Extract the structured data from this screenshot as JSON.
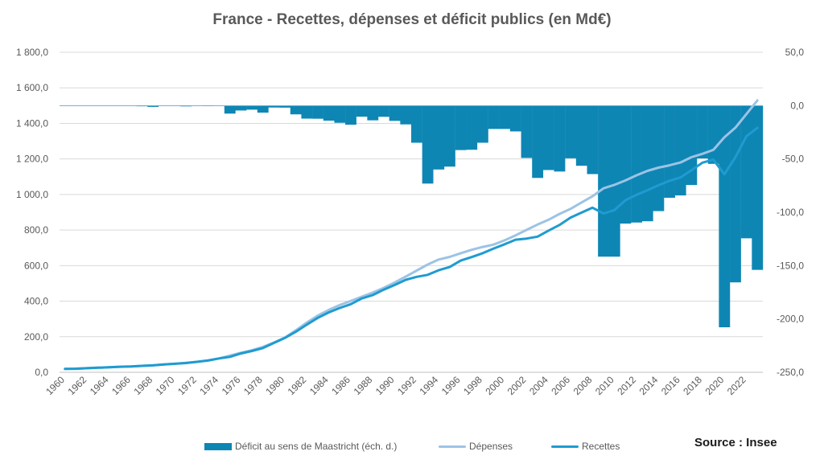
{
  "chart_data": {
    "type": "bar",
    "title": "France - Recettes, dépenses et déficit  publics (en Md€)",
    "source": "Source : Insee",
    "x": [
      1960,
      1961,
      1962,
      1963,
      1964,
      1965,
      1966,
      1967,
      1968,
      1969,
      1970,
      1971,
      1972,
      1973,
      1974,
      1975,
      1976,
      1977,
      1978,
      1979,
      1980,
      1981,
      1982,
      1983,
      1984,
      1985,
      1986,
      1987,
      1988,
      1989,
      1990,
      1991,
      1992,
      1993,
      1994,
      1995,
      1996,
      1997,
      1998,
      1999,
      2000,
      2001,
      2002,
      2003,
      2004,
      2005,
      2006,
      2007,
      2008,
      2009,
      2010,
      2011,
      2012,
      2013,
      2014,
      2015,
      2016,
      2017,
      2018,
      2019,
      2020,
      2021,
      2022,
      2023
    ],
    "x_tick_labels": [
      "1960",
      "1962",
      "1964",
      "1966",
      "1968",
      "1970",
      "1972",
      "1974",
      "1976",
      "1978",
      "1980",
      "1982",
      "1984",
      "1986",
      "1988",
      "1990",
      "1992",
      "1994",
      "1996",
      "1998",
      "2000",
      "2002",
      "2004",
      "2006",
      "2008",
      "2010",
      "2012",
      "2014",
      "2016",
      "2018",
      "2020",
      "2022"
    ],
    "y_left": {
      "min": 0,
      "max": 1800,
      "ticks": [
        "0,0",
        "200,0",
        "400,0",
        "600,0",
        "800,0",
        "1 000,0",
        "1 200,0",
        "1 400,0",
        "1 600,0",
        "1 800,0"
      ]
    },
    "y_right": {
      "min": -250,
      "max": 50,
      "ticks": [
        "-250,0",
        "-200,0",
        "-150,0",
        "-100,0",
        "-50,0",
        "0,0",
        "50,0"
      ]
    },
    "grid": true,
    "legend_position": "bottom",
    "series": [
      {
        "name": "Déficit au sens de Maastricht (éch. d.)",
        "type": "bar",
        "axis": "right",
        "color": "#0e86b4",
        "values": [
          -0.3,
          -0.3,
          -0.2,
          -0.3,
          -0.2,
          0.0,
          -0.3,
          -0.6,
          -1.2,
          0.1,
          -0.3,
          -0.7,
          -0.3,
          -0.5,
          -0.2,
          -7.5,
          -4.6,
          -3.8,
          -6.6,
          -1.8,
          -1.9,
          -8.2,
          -12.2,
          -12.3,
          -14.1,
          -16.1,
          -17.9,
          -10.4,
          -13.8,
          -10.5,
          -14.3,
          -17.6,
          -34.8,
          -73.1,
          -59.9,
          -57.2,
          -41.7,
          -41.4,
          -34.8,
          -21.9,
          -21.9,
          -24.2,
          -49.1,
          -67.8,
          -60.4,
          -61.8,
          -49.4,
          -56.4,
          -64.2,
          -141.6,
          -141.6,
          -110.6,
          -109.6,
          -108.4,
          -98.9,
          -86.4,
          -84.2,
          -74.4,
          -49.5,
          -54.6,
          -207.8,
          -165.7,
          -124.4,
          -154.0
        ]
      },
      {
        "name": "Dépenses",
        "type": "line",
        "axis": "left",
        "color": "#9cc3e5",
        "values": [
          19,
          21,
          23,
          26,
          28,
          31,
          33,
          36,
          40,
          44,
          48,
          53,
          59,
          67,
          78,
          94,
          110,
          124,
          143,
          167,
          195,
          236,
          280,
          319,
          351,
          378,
          401,
          425,
          448,
          475,
          505,
          538,
          572,
          606,
          634,
          649,
          670,
          689,
          705,
          718,
          742,
          770,
          801,
          831,
          858,
          891,
          919,
          955,
          990,
          1035,
          1054,
          1079,
          1108,
          1133,
          1151,
          1164,
          1180,
          1210,
          1229,
          1251,
          1322,
          1376,
          1452,
          1529
        ]
      },
      {
        "name": "Recettes",
        "type": "line",
        "axis": "left",
        "color": "#1f9bd1",
        "values": [
          19,
          20,
          23,
          26,
          28,
          31,
          33,
          36,
          39,
          44,
          48,
          52,
          59,
          66,
          78,
          87,
          106,
          120,
          136,
          165,
          193,
          228,
          268,
          306,
          337,
          362,
          383,
          415,
          434,
          465,
          491,
          520,
          537,
          548,
          574,
          592,
          628,
          648,
          670,
          696,
          720,
          746,
          752,
          763,
          797,
          829,
          870,
          898,
          926,
          893,
          912,
          968,
          998,
          1024,
          1052,
          1077,
          1096,
          1136,
          1179,
          1196,
          1114,
          1210,
          1327,
          1375
        ]
      }
    ]
  },
  "legend": {
    "deficit_label": "Déficit au sens de Maastricht (éch. d.)",
    "depenses_label": "Dépenses",
    "recettes_label": "Recettes"
  }
}
